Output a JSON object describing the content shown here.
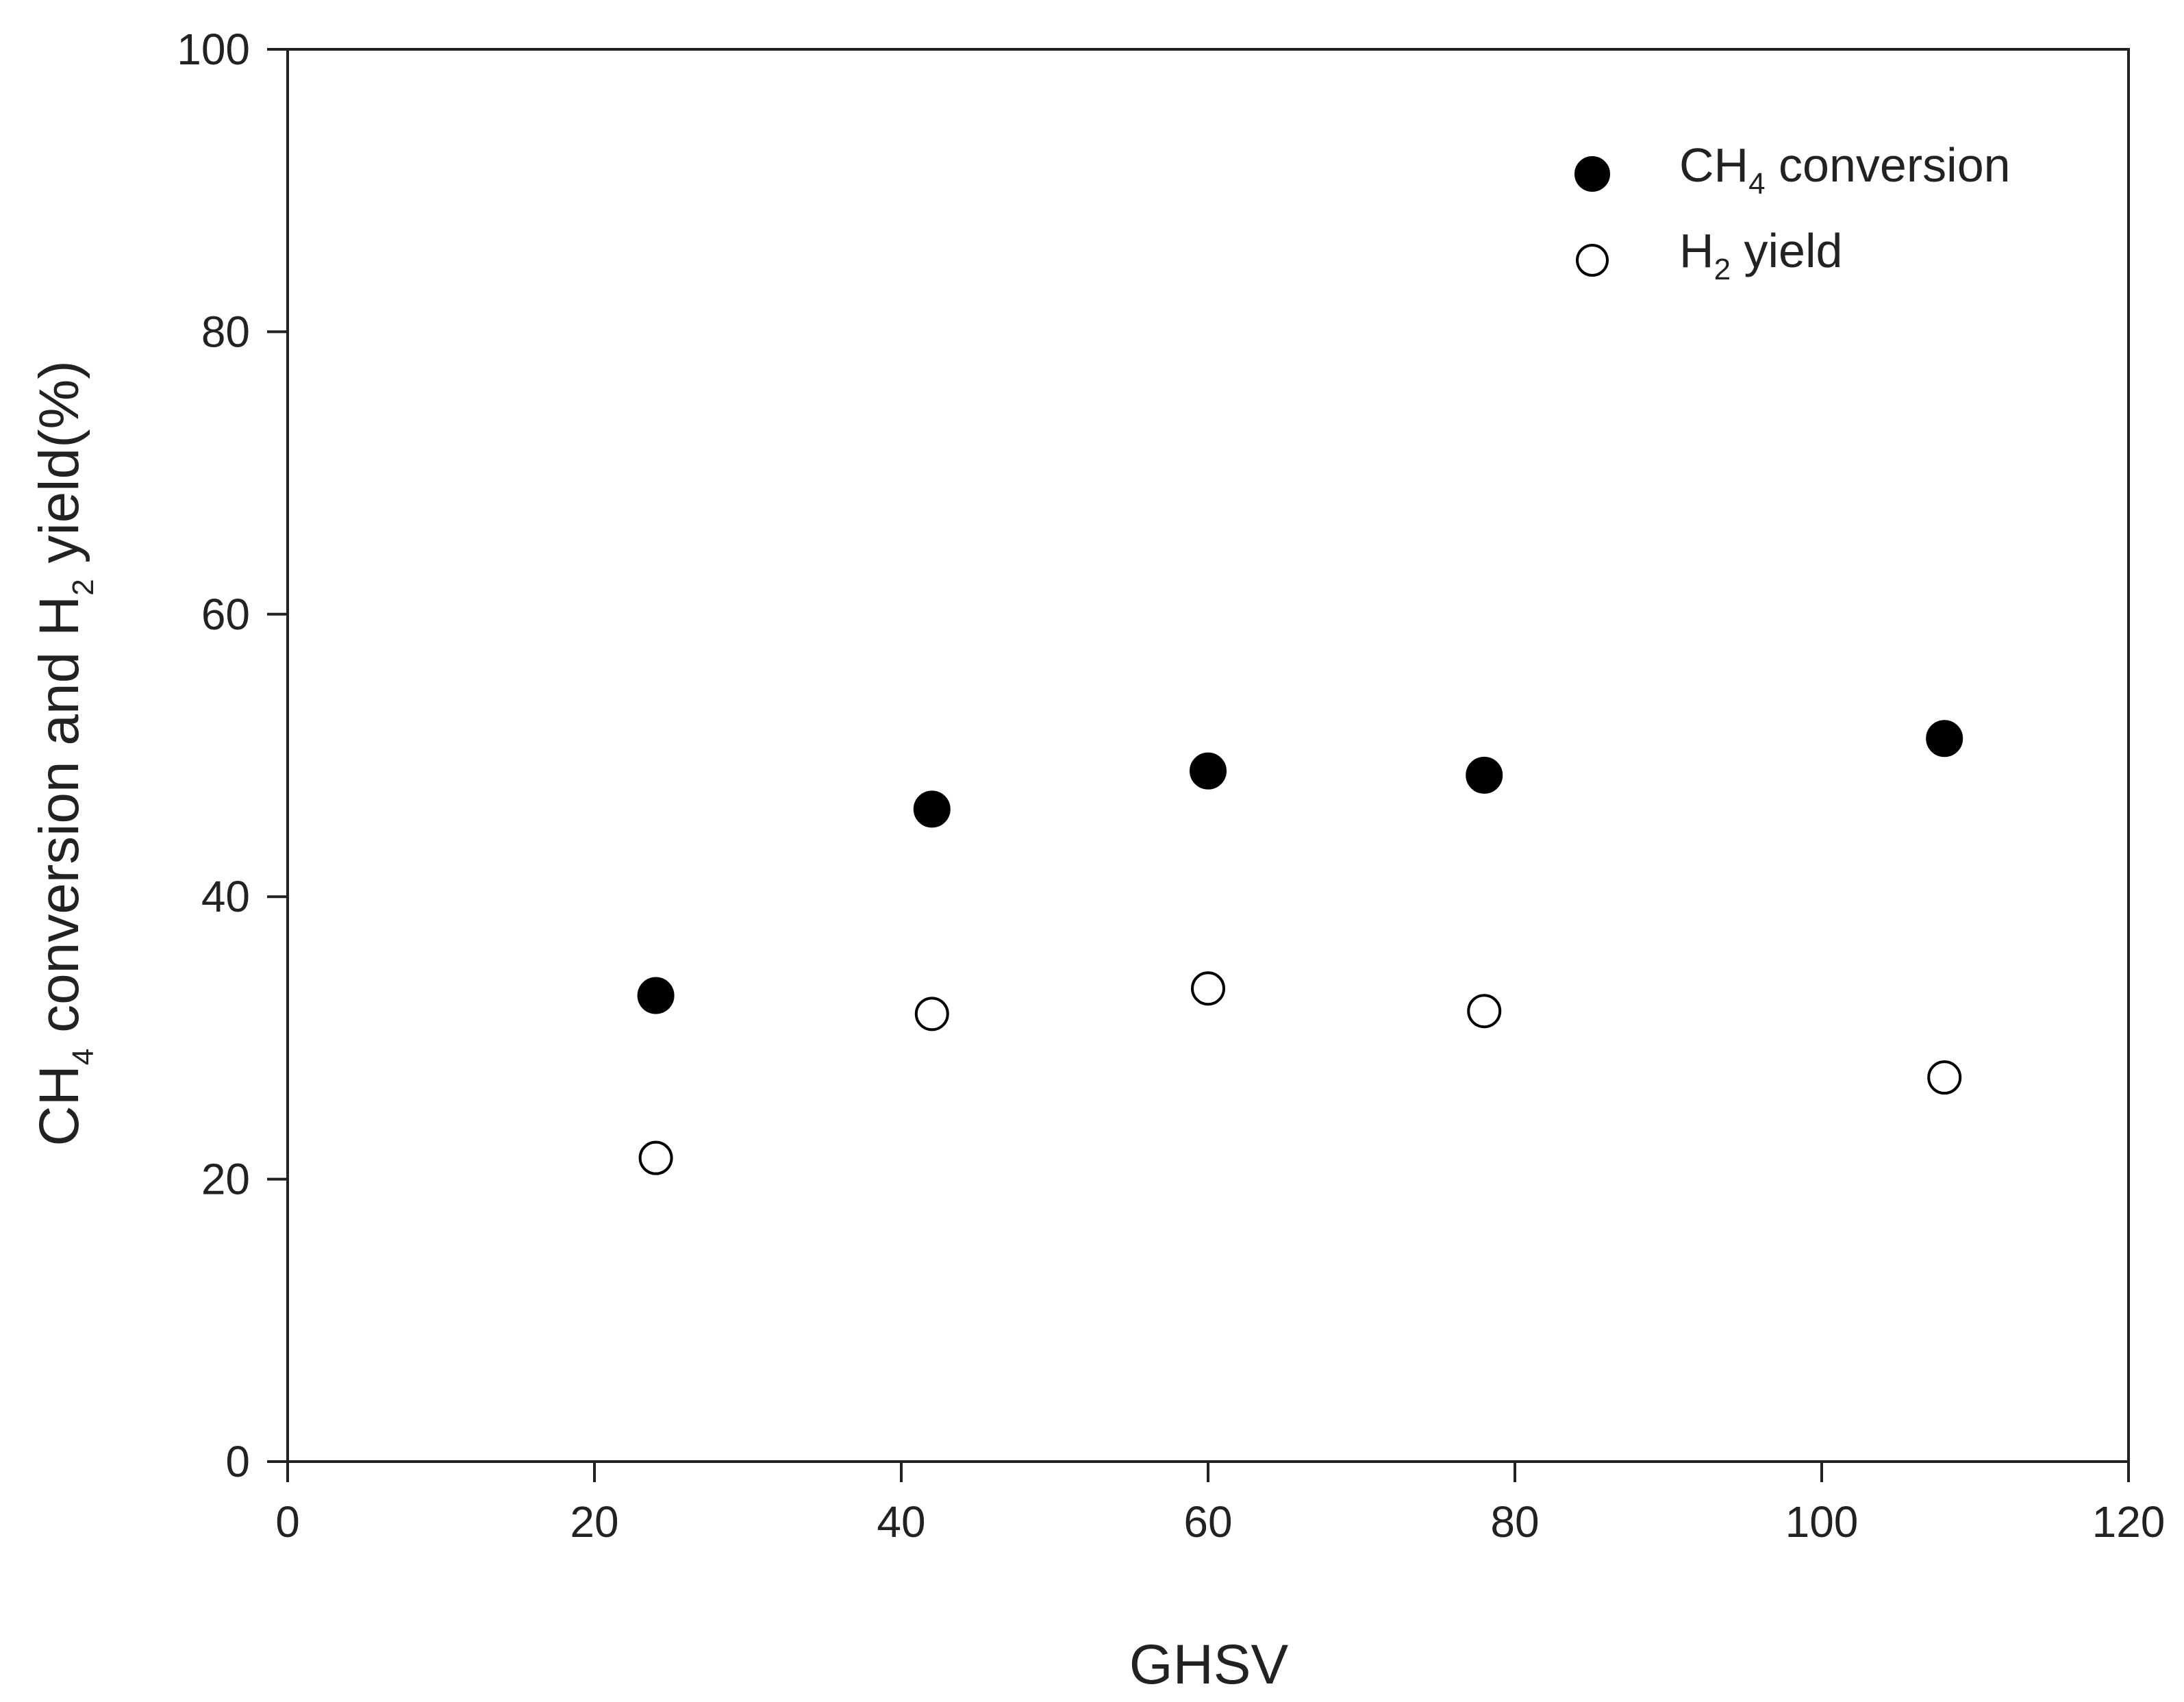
{
  "chart_data": {
    "type": "scatter",
    "xlabel": "GHSV",
    "ylabel": {
      "prefix": "CH",
      "sub1": "4",
      "middle": " conversion and H",
      "sub2": "2",
      "suffix": " yield(%)"
    },
    "xlim": [
      0,
      120
    ],
    "ylim": [
      0,
      100
    ],
    "xticks": [
      0,
      20,
      40,
      60,
      80,
      100,
      120
    ],
    "yticks": [
      0,
      20,
      40,
      60,
      80,
      100
    ],
    "grid": false,
    "legend_position": "top-right",
    "series": [
      {
        "name": "CH4 conversion",
        "legend": {
          "prefix": "CH",
          "sub": "4",
          "suffix": " conversion"
        },
        "marker": "filled-circle",
        "color": "#000000",
        "x": [
          24,
          42,
          60,
          78,
          108
        ],
        "y": [
          33,
          46.2,
          48.9,
          48.6,
          51.2
        ]
      },
      {
        "name": "H2 yield",
        "legend": {
          "prefix": "H",
          "sub": "2",
          "suffix": " yield"
        },
        "marker": "open-circle",
        "color": "#000000",
        "x": [
          24,
          42,
          60,
          78,
          108
        ],
        "y": [
          21.5,
          31.7,
          33.5,
          31.9,
          27.2
        ]
      }
    ]
  }
}
